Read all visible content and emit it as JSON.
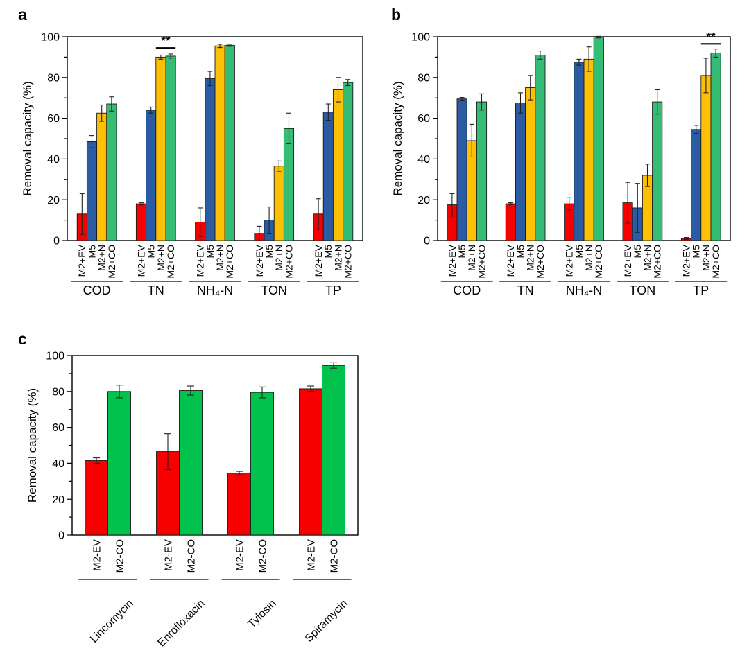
{
  "figure": {
    "background": "#ffffff",
    "panel_letters": [
      "a",
      "b",
      "c"
    ]
  },
  "chart_data": [
    {
      "panel": "a",
      "type": "bar",
      "title": "",
      "xlabel": "",
      "ylabel": "Removal capacity (%)",
      "ylim": [
        0,
        100
      ],
      "yticks": [
        0,
        20,
        40,
        60,
        80,
        100
      ],
      "minor_tick": 10,
      "grid": false,
      "legend_position": "none",
      "categories": [
        "COD",
        "TN",
        "NH₄-N",
        "TON",
        "TP"
      ],
      "series": [
        {
          "name": "M2+EV",
          "color": "#f70000",
          "values": [
            13,
            18,
            9,
            3.5,
            13
          ],
          "errors": [
            10,
            0.5,
            7,
            3.5,
            7.5
          ]
        },
        {
          "name": "M5",
          "color": "#2b5ca3",
          "values": [
            48.5,
            64,
            79.5,
            10,
            63
          ],
          "errors": [
            3,
            1.5,
            3.5,
            6.5,
            4
          ]
        },
        {
          "name": "M2+N",
          "color": "#fdc005",
          "values": [
            62.5,
            90,
            95.5,
            36.5,
            74
          ],
          "errors": [
            4,
            1,
            0.8,
            2.5,
            6
          ]
        },
        {
          "name": "M2+CO",
          "color": "#35bd76",
          "values": [
            67,
            90.5,
            95.8,
            55,
            77.5
          ],
          "errors": [
            3.5,
            1,
            0.5,
            7.5,
            1.5
          ]
        }
      ],
      "significance": {
        "category": "TN",
        "from_series": "M2+N",
        "to_series": "M2+CO",
        "label": "**",
        "y": 94.5
      }
    },
    {
      "panel": "b",
      "type": "bar",
      "title": "",
      "xlabel": "",
      "ylabel": "Removal capacity (%)",
      "ylim": [
        0,
        100
      ],
      "yticks": [
        0,
        20,
        40,
        60,
        80,
        100
      ],
      "minor_tick": 10,
      "grid": false,
      "legend_position": "none",
      "categories": [
        "COD",
        "TN",
        "NH₄-N",
        "TON",
        "TP"
      ],
      "series": [
        {
          "name": "M2+EV",
          "color": "#f70000",
          "values": [
            17.5,
            18,
            18,
            18.5,
            1
          ],
          "errors": [
            5.5,
            0.5,
            3,
            10,
            0.5
          ]
        },
        {
          "name": "M5",
          "color": "#2b5ca3",
          "values": [
            69.5,
            67.5,
            87.5,
            16,
            54.5
          ],
          "errors": [
            0.7,
            5,
            1.5,
            12,
            2
          ]
        },
        {
          "name": "M2+N",
          "color": "#fdc005",
          "values": [
            49,
            75,
            89,
            32,
            81
          ],
          "errors": [
            8,
            6,
            6,
            5.5,
            8.5
          ]
        },
        {
          "name": "M2+CO",
          "color": "#35bd76",
          "values": [
            68,
            91,
            99.8,
            68,
            92
          ],
          "errors": [
            4,
            2,
            0.4,
            6,
            2
          ]
        }
      ],
      "significance": {
        "category": "TP",
        "from_series": "M2+N",
        "to_series": "M2+CO",
        "label": "**",
        "y": 96.5
      }
    },
    {
      "panel": "c",
      "type": "bar",
      "title": "",
      "xlabel": "",
      "ylabel": "Removal capacity (%)",
      "ylim": [
        0,
        100
      ],
      "yticks": [
        0,
        20,
        40,
        60,
        80,
        100
      ],
      "minor_tick": 10,
      "grid": false,
      "legend_position": "none",
      "categories": [
        "Lincomycin",
        "Enrofloxacin",
        "Tylosin",
        "Spiramycin"
      ],
      "series": [
        {
          "name": "M2-EV",
          "color": "#f70000",
          "values": [
            41.5,
            46.5,
            34.5,
            81.5
          ],
          "errors": [
            1.5,
            10,
            1,
            1.5
          ]
        },
        {
          "name": "M2-CO",
          "color": "#00c24d",
          "values": [
            80,
            80.5,
            79.5,
            94.5
          ],
          "errors": [
            3.5,
            2.5,
            3,
            1.5
          ]
        }
      ],
      "significance": null
    }
  ]
}
